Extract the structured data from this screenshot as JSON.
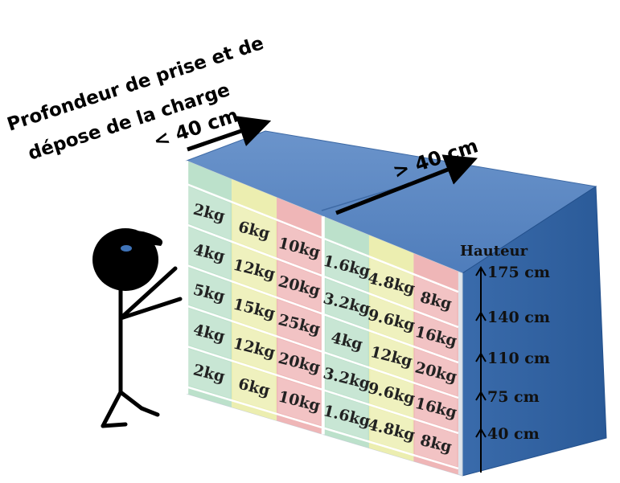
{
  "labels": {
    "depth_line1": "Profondeur de prise et de",
    "depth_line2": "dépose de la charge",
    "front_depth": "< 40 cm",
    "back_depth": "> 40 cm",
    "height_title": "Hauteur"
  },
  "heights": [
    "175 cm",
    "140 cm",
    "110 cm",
    "75 cm",
    "40 cm"
  ],
  "grid": {
    "front": [
      [
        "2kg",
        "6kg",
        "10kg"
      ],
      [
        "4kg",
        "12kg",
        "20kg"
      ],
      [
        "5kg",
        "15kg",
        "25kg"
      ],
      [
        "4kg",
        "12kg",
        "20kg"
      ],
      [
        "2kg",
        "6kg",
        "10kg"
      ]
    ],
    "back": [
      [
        "1.6kg",
        "4.8kg",
        "8kg"
      ],
      [
        "3.2kg",
        "9.6kg",
        "16kg"
      ],
      [
        "4kg",
        "12kg",
        "20kg"
      ],
      [
        "3.2kg",
        "9.6kg",
        "16kg"
      ],
      [
        "1.6kg",
        "4.8kg",
        "8kg"
      ]
    ]
  },
  "colors": {
    "box_top": "#5b86bf",
    "box_side": "#2d5e9e",
    "face_bg": "#dfe5ec",
    "green": "#b6e0c6",
    "yellow": "#eef0a6",
    "red": "#f2aeae",
    "figure": "#000000",
    "cap_dot": "#3f73b8"
  }
}
